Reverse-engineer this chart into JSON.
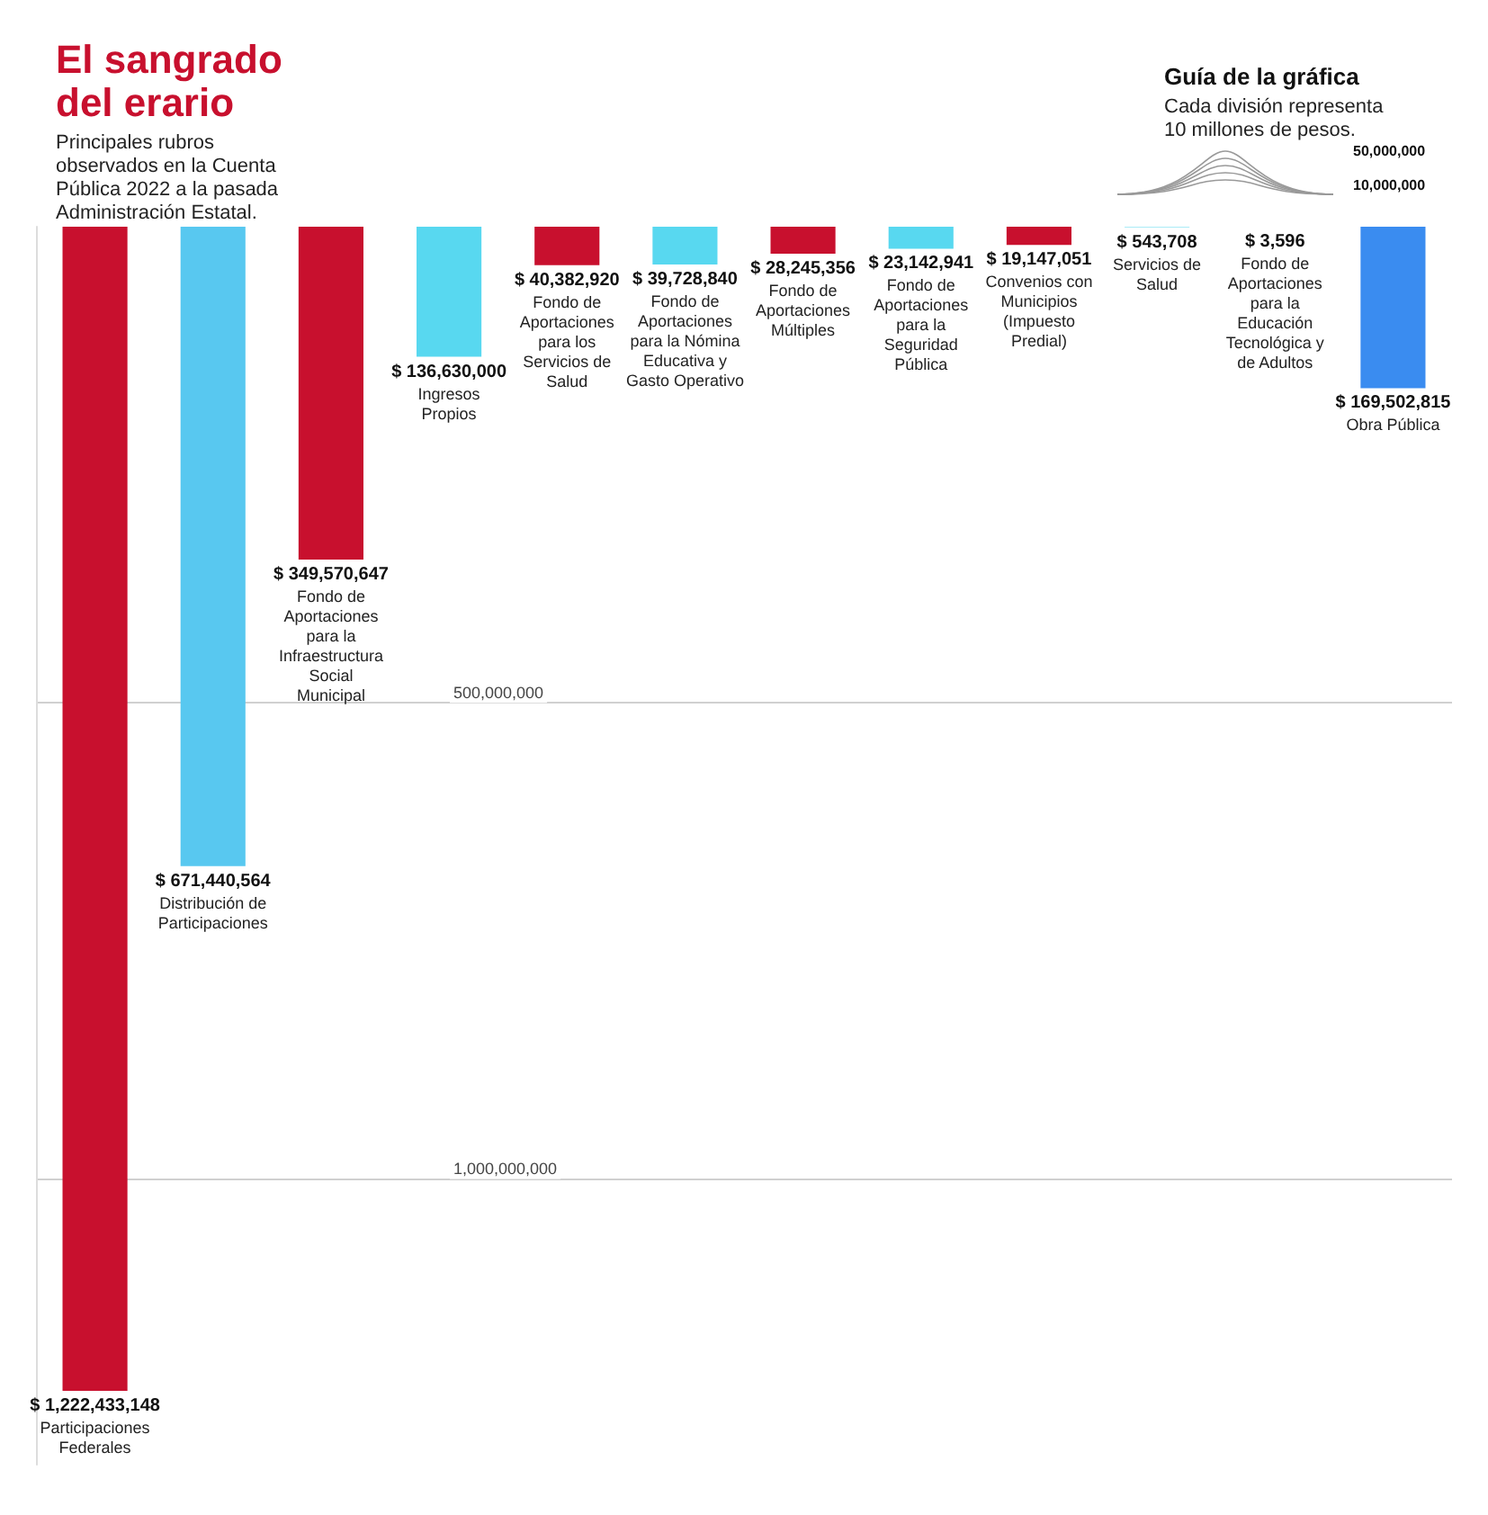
{
  "chart_data": {
    "type": "bar",
    "title": "El sangrado del erario",
    "subtitle": "Principales rubros observados en la Cuenta Pública 2022 a la pasada Administración Estatal.",
    "categories": [
      "Participaciones Federales",
      "Distribución de Participaciones",
      "Fondo de Aportaciones para la Infraestructura Social Municipal",
      "Ingresos Propios",
      "Fondo de Aportaciones para los Servicios de Salud",
      "Fondo de Aportaciones para la Nómina Educativa y Gasto Operativo",
      "Fondo de Aportaciones Múltiples",
      "Fondo de Aportaciones para la Seguridad Pública",
      "Convenios con Municipios (Impuesto Predial)",
      "Servicios de Salud",
      "Fondo de Aportaciones para la Educación Tecnológica y de Adultos",
      "Obra Pública"
    ],
    "values": [
      1222433148,
      671440564,
      349570647,
      136630000,
      40382920,
      39728840,
      28245356,
      23142941,
      19147051,
      543708,
      3596,
      169502815
    ],
    "value_labels": [
      "$ 1,222,433,148",
      "$ 671,440,564",
      "$ 349,570,647",
      "$ 136,630,000",
      "$ 40,382,920",
      "$ 39,728,840",
      "$ 28,245,356",
      "$ 23,142,941",
      "$ 19,147,051",
      "$ 543,708",
      "$ 3,596",
      "$ 169,502,815"
    ],
    "colors": [
      "#c8102e",
      "#58c8f0",
      "#c8102e",
      "#58d8f0",
      "#c8102e",
      "#58d8f0",
      "#c8102e",
      "#58d8f0",
      "#c8102e",
      "#58d8f0",
      "#c8102e",
      "#3a8cf0"
    ],
    "ylim": [
      1300000000,
      0
    ],
    "yticks": [
      {
        "value": 500000000,
        "label": "500,000,000"
      },
      {
        "value": 1000000000,
        "label": "1,000,000,000"
      }
    ],
    "grid": "y",
    "annotations": [
      "Guía de la gráfica",
      "Cada división representa 10 millones de pesos.",
      "50,000,000",
      "10,000,000"
    ]
  }
}
